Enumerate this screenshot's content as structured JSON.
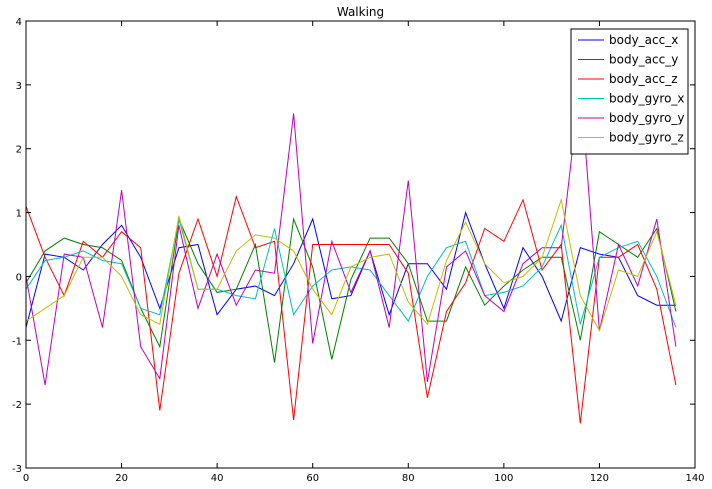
{
  "chart_data": {
    "type": "line",
    "title": "Walking",
    "xlabel": "",
    "ylabel": "",
    "xlim": [
      0,
      140
    ],
    "ylim": [
      -3,
      4
    ],
    "xticks": [
      0,
      20,
      40,
      60,
      80,
      100,
      120,
      140
    ],
    "yticks": [
      -3,
      -2,
      -1,
      0,
      1,
      2,
      3,
      4
    ],
    "grid": false,
    "legend": "top-right",
    "x_start": 0,
    "x_step": 4,
    "series": [
      {
        "name": "body_acc_x",
        "color": "#0000ff",
        "values": [
          -0.8,
          0.35,
          0.3,
          0.1,
          0.5,
          0.8,
          0.3,
          -0.5,
          0.45,
          0.5,
          -0.6,
          -0.2,
          -0.15,
          -0.3,
          0.2,
          0.9,
          -0.35,
          -0.3,
          0.4,
          -0.6,
          0.2,
          0.2,
          -0.2,
          1.0,
          0.2,
          -0.5,
          0.45,
          0.0,
          -0.7,
          0.45,
          0.35,
          0.3,
          -0.3,
          -0.45,
          -0.45
        ]
      },
      {
        "name": "body_acc_y",
        "color": "#008000",
        "values": [
          -0.1,
          0.4,
          0.6,
          0.5,
          0.45,
          0.25,
          -0.5,
          -1.1,
          0.9,
          0.2,
          -0.25,
          -0.2,
          0.5,
          -1.35,
          0.9,
          0.15,
          -1.3,
          -0.05,
          0.6,
          0.6,
          0.2,
          -0.7,
          -0.7,
          0.15,
          -0.45,
          -0.15,
          0.1,
          0.3,
          0.3,
          -1.0,
          0.7,
          0.5,
          0.3,
          0.75,
          -0.55
        ]
      },
      {
        "name": "body_acc_z",
        "color": "#ff0000",
        "values": [
          1.1,
          0.3,
          -0.3,
          0.55,
          0.3,
          0.7,
          0.45,
          -2.1,
          0.05,
          0.9,
          0.0,
          1.25,
          0.45,
          0.55,
          -2.25,
          0.5,
          0.5,
          0.5,
          0.5,
          0.5,
          0.05,
          -1.9,
          -0.55,
          -0.1,
          0.75,
          0.55,
          1.2,
          0.1,
          0.5,
          -2.3,
          0.3,
          0.3,
          0.5,
          -0.2,
          -1.7
        ]
      },
      {
        "name": "body_gyro_x",
        "color": "#00bfbf",
        "values": [
          -0.2,
          0.25,
          0.3,
          0.4,
          0.25,
          0.2,
          -0.5,
          -0.6,
          0.9,
          -0.2,
          -0.2,
          -0.3,
          -0.35,
          0.75,
          -0.6,
          -0.15,
          0.1,
          0.15,
          0.1,
          -0.3,
          -0.7,
          0.0,
          0.45,
          0.55,
          -0.3,
          -0.25,
          -0.15,
          0.15,
          0.8,
          -0.75,
          0.3,
          0.45,
          0.55,
          0.0,
          -0.8
        ]
      },
      {
        "name": "body_gyro_y",
        "color": "#bf00bf",
        "values": [
          0.0,
          -1.7,
          0.35,
          0.3,
          -0.8,
          1.35,
          -1.1,
          -1.6,
          0.8,
          -0.5,
          0.35,
          -0.45,
          0.1,
          0.05,
          2.55,
          -1.05,
          0.55,
          -0.25,
          0.4,
          -0.8,
          1.5,
          -1.65,
          0.15,
          0.4,
          -0.3,
          -0.55,
          0.2,
          0.45,
          0.45,
          3.05,
          -0.85,
          0.5,
          -0.15,
          0.9,
          -1.1
        ]
      },
      {
        "name": "body_gyro_z",
        "color": "#bfbf00",
        "values": [
          -0.7,
          -0.5,
          -0.3,
          0.3,
          0.3,
          0.0,
          -0.6,
          -0.75,
          0.95,
          -0.2,
          -0.2,
          0.4,
          0.65,
          0.6,
          0.4,
          -0.2,
          -0.6,
          0.15,
          0.3,
          0.35,
          -0.4,
          -0.75,
          0.25,
          0.85,
          0.2,
          -0.1,
          0.0,
          0.3,
          1.2,
          -0.3,
          -0.85,
          0.1,
          0.0,
          0.7,
          -0.45
        ]
      }
    ]
  }
}
